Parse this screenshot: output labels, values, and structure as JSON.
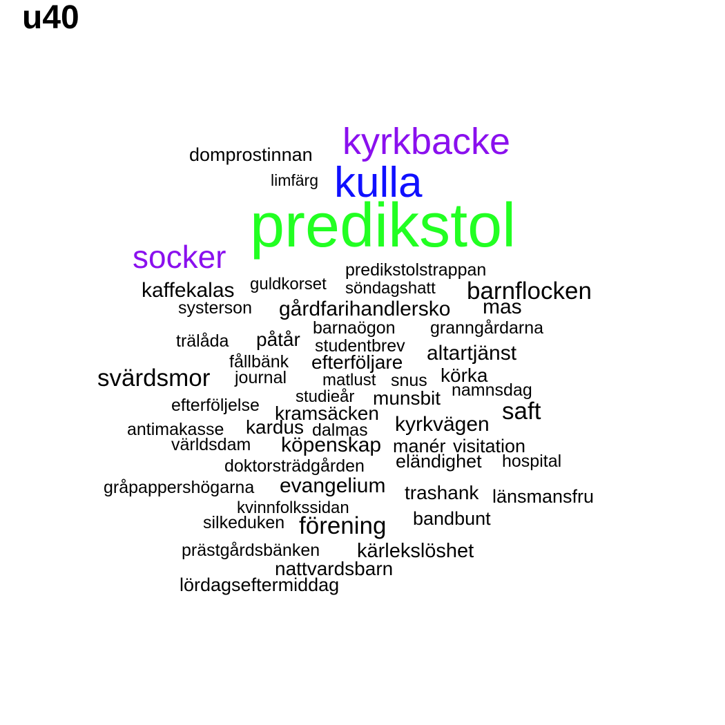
{
  "title": "u40",
  "colors": {
    "purple": "#8a10ee",
    "blue": "#1010ff",
    "green": "#22ff22",
    "black": "#000000"
  },
  "words": [
    "predikstol",
    "kulla",
    "kyrkbacke",
    "socker",
    "domprostinnan",
    "limfärg",
    "predikstolstrappan",
    "kaffekalas",
    "guldkorset",
    "söndagshatt",
    "barnflocken",
    "systerson",
    "gårdfarihandlersko",
    "mas",
    "barnaögon",
    "granngårdarna",
    "trälåda",
    "påtår",
    "studentbrev",
    "altartjänst",
    "fållbänk",
    "efterföljare",
    "svärdsmor",
    "journal",
    "matlust",
    "snus",
    "körka",
    "namnsdag",
    "studieår",
    "munsbit",
    "efterföljelse",
    "saft",
    "kramsäcken",
    "antimakasse",
    "kardus",
    "dalmas",
    "kyrkvägen",
    "världsdam",
    "köpenskap",
    "manér",
    "visitation",
    "doktorsträdgården",
    "eländighet",
    "hospital",
    "gråpappershögarna",
    "evangelium",
    "trashank",
    "länsmansfru",
    "kvinnfolkssidan",
    "silkeduken",
    "förening",
    "bandbunt",
    "prästgårdsbänken",
    "kärlekslöshet",
    "nattvardsbarn",
    "lördagseftermiddag"
  ]
}
